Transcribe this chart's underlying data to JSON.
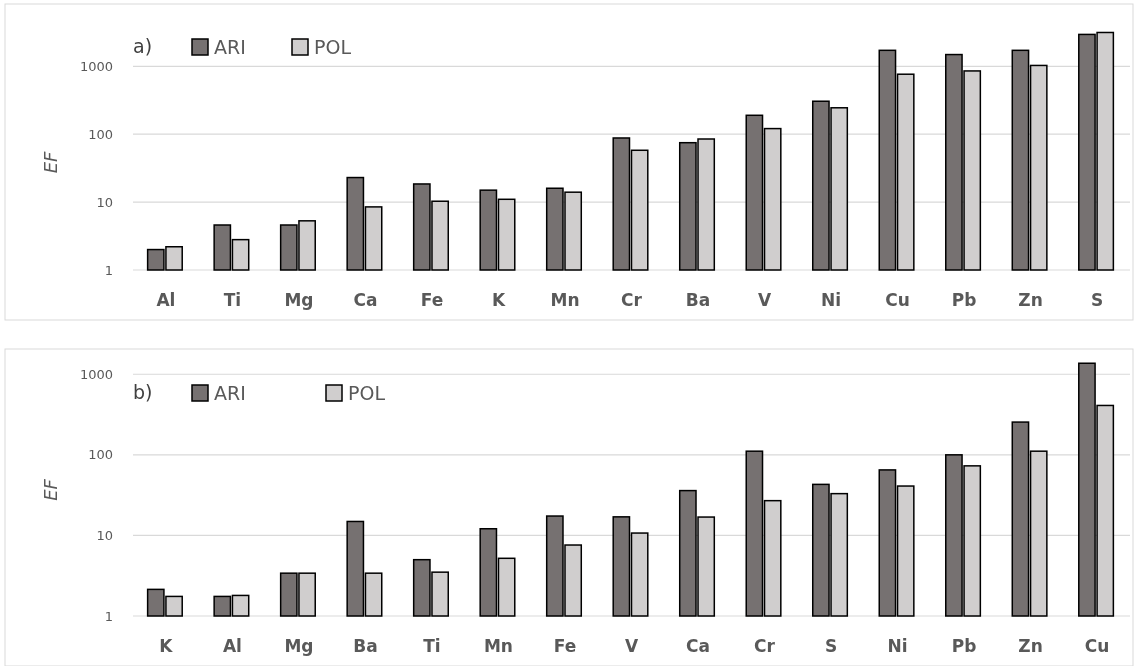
{
  "chart_data": [
    {
      "type": "bar",
      "title": "a)",
      "ylabel": "EF",
      "categories": [
        "Al",
        "Ti",
        "Mg",
        "Ca",
        "Fe",
        "K",
        "Mn",
        "Cr",
        "Ba",
        "V",
        "Ni",
        "Cu",
        "Pb",
        "Zn",
        "S"
      ],
      "series": [
        {
          "name": "ARI",
          "color": "#767171",
          "values": [
            2.0,
            4.6,
            4.6,
            23,
            18.5,
            15,
            16,
            88,
            75,
            190,
            306,
            1720,
            1490,
            1720,
            2950
          ]
        },
        {
          "name": "POL",
          "color": "#d0cece",
          "values": [
            2.2,
            2.8,
            5.3,
            8.5,
            10.3,
            11,
            14,
            58,
            85,
            121,
            245,
            765,
            855,
            1030,
            3150
          ]
        }
      ],
      "ylim": [
        1,
        8000
      ],
      "yticks": [
        1,
        10,
        100,
        1000
      ],
      "log": true,
      "grid": "y",
      "legend": "top left"
    },
    {
      "type": "bar",
      "title": "b)",
      "ylabel": "EF",
      "categories": [
        "K",
        "Al",
        "Mg",
        "Ba",
        "Ti",
        "Mn",
        "Fe",
        "V",
        "Ca",
        "Cr",
        "S",
        "Ni",
        "Pb",
        "Zn",
        "Cu"
      ],
      "series": [
        {
          "name": "ARI",
          "color": "#767171",
          "values": [
            2.14,
            1.75,
            3.4,
            14.9,
            5.0,
            12.1,
            17.4,
            17,
            36,
            111,
            43,
            65,
            100,
            255,
            1370
          ]
        },
        {
          "name": "POL",
          "color": "#d0cece",
          "values": [
            1.75,
            1.8,
            3.4,
            3.4,
            3.5,
            5.2,
            7.6,
            10.7,
            16.9,
            27,
            33,
            41,
            73,
            111,
            410
          ]
        }
      ],
      "ylim": [
        1,
        2000
      ],
      "yticks": [
        1,
        10,
        100,
        1000
      ],
      "log": true,
      "grid": "y",
      "legend": "top left"
    }
  ]
}
